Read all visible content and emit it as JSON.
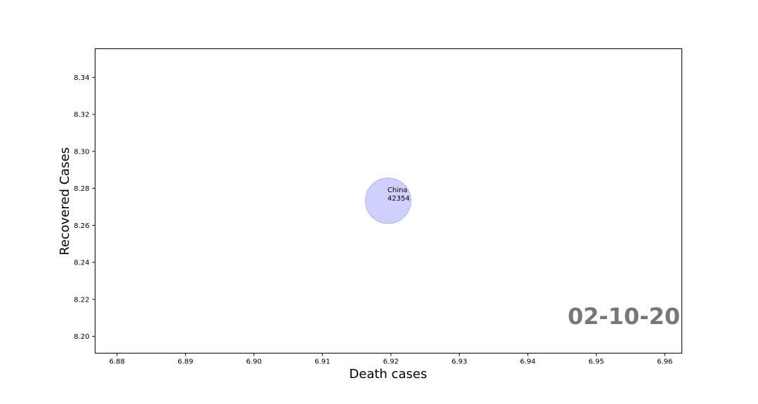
{
  "chart_data": {
    "type": "scatter",
    "title": "",
    "xlabel": "Death cases",
    "ylabel": "Recovered Cases",
    "xlim": [
      6.8768,
      6.9625
    ],
    "ylim": [
      8.1909,
      8.3555
    ],
    "xticks": [
      "6.88",
      "6.89",
      "6.90",
      "6.91",
      "6.92",
      "6.93",
      "6.94",
      "6.95",
      "6.96"
    ],
    "yticks": [
      "8.20",
      "8.22",
      "8.24",
      "8.26",
      "8.28",
      "8.30",
      "8.32",
      "8.34"
    ],
    "grid": false,
    "points": [
      {
        "label": "China",
        "value_text": "42354",
        "x": 6.9196,
        "y": 8.2733,
        "value": 42354
      }
    ],
    "bubble_color": "#c8c8ff",
    "bubble_edge_color": "#b4b4f0",
    "annotation": {
      "text": "02-10-20",
      "color": "#777777"
    }
  }
}
